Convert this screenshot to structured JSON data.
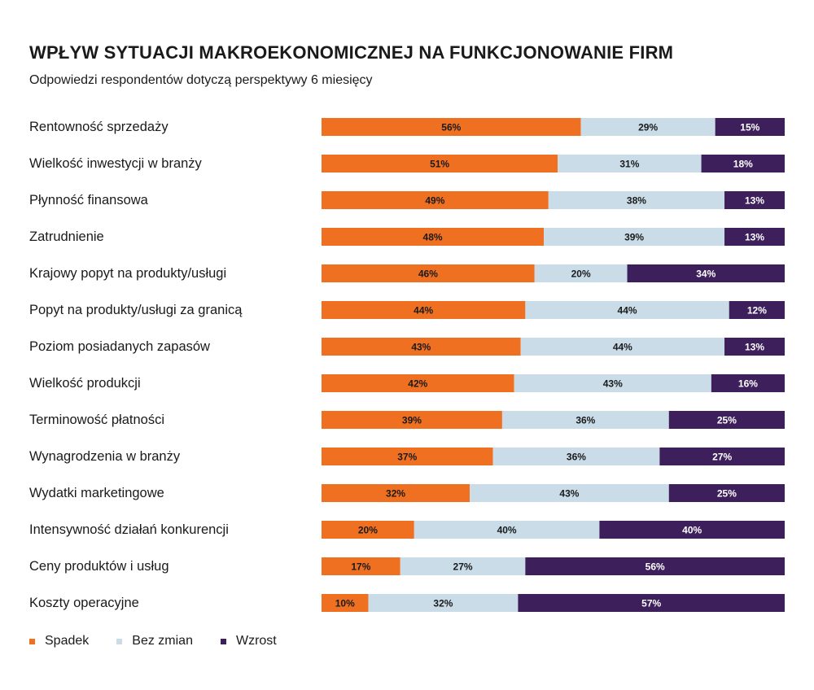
{
  "header": {
    "title": "WPŁYW SYTUACJI MAKROEKONOMICZNEJ NA FUNKCJONOWANIE FIRM",
    "subtitle": "Odpowiedzi respondentów dotyczą perspektywy 6 miesięcy"
  },
  "colors": {
    "spadek": "#f07022",
    "bez_zmian": "#c9dce8",
    "wzrost": "#3d1f5c"
  },
  "chart_data": {
    "type": "bar",
    "orientation": "horizontal",
    "stacked": true,
    "unit": "%",
    "title": "WPŁYW SYTUACJI MAKROEKONOMICZNEJ NA FUNKCJONOWANIE FIRM",
    "subtitle": "Odpowiedzi respondentów dotyczą perspektywy 6 miesięcy",
    "categories": [
      "Rentowność sprzedaży",
      "Wielkość inwestycji w branży",
      "Płynność finansowa",
      "Zatrudnienie",
      "Krajowy popyt na produkty/usługi",
      "Popyt na produkty/usługi za granicą",
      "Poziom posiadanych zapasów",
      "Wielkość produkcji",
      "Terminowość płatności",
      "Wynagrodzenia w branży",
      "Wydatki marketingowe",
      "Intensywność działań konkurencji",
      "Ceny produktów i usług",
      "Koszty operacyjne"
    ],
    "series": [
      {
        "name": "Spadek",
        "values": [
          56,
          51,
          49,
          48,
          46,
          44,
          43,
          42,
          39,
          37,
          32,
          20,
          17,
          10
        ]
      },
      {
        "name": "Bez zmian",
        "values": [
          29,
          31,
          38,
          39,
          20,
          44,
          44,
          43,
          36,
          36,
          43,
          40,
          27,
          32
        ]
      },
      {
        "name": "Wzrost",
        "values": [
          15,
          18,
          13,
          13,
          34,
          12,
          13,
          16,
          25,
          27,
          25,
          40,
          56,
          57
        ]
      }
    ],
    "xlim": [
      0,
      100
    ],
    "grid": false,
    "legend_position": "bottom-left"
  },
  "legend": [
    {
      "label": "Spadek"
    },
    {
      "label": "Bez zmian"
    },
    {
      "label": "Wzrost"
    }
  ]
}
